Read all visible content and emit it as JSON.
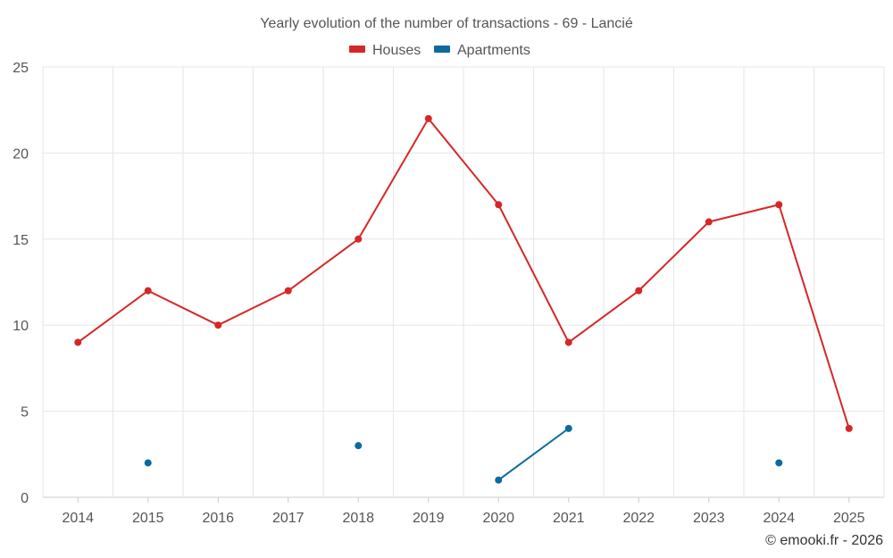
{
  "chart_data": {
    "type": "line",
    "title": "Yearly evolution of the number of transactions - 69 - Lancié",
    "categories": [
      "2014",
      "2015",
      "2016",
      "2017",
      "2018",
      "2019",
      "2020",
      "2021",
      "2022",
      "2023",
      "2024",
      "2025"
    ],
    "series": [
      {
        "name": "Houses",
        "color": "#d62728",
        "values": [
          9,
          12,
          10,
          12,
          15,
          22,
          17,
          9,
          12,
          16,
          17,
          4
        ]
      },
      {
        "name": "Apartments",
        "color": "#0b6aa2",
        "values": [
          null,
          2,
          null,
          null,
          3,
          null,
          1,
          4,
          null,
          null,
          2,
          null
        ]
      }
    ],
    "ylim": [
      0,
      25
    ],
    "yticks": [
      0,
      5,
      10,
      15,
      20,
      25
    ],
    "grid": true,
    "legend": "top-center",
    "xlabel": "",
    "ylabel": ""
  },
  "credit": "© emooki.fr - 2026"
}
